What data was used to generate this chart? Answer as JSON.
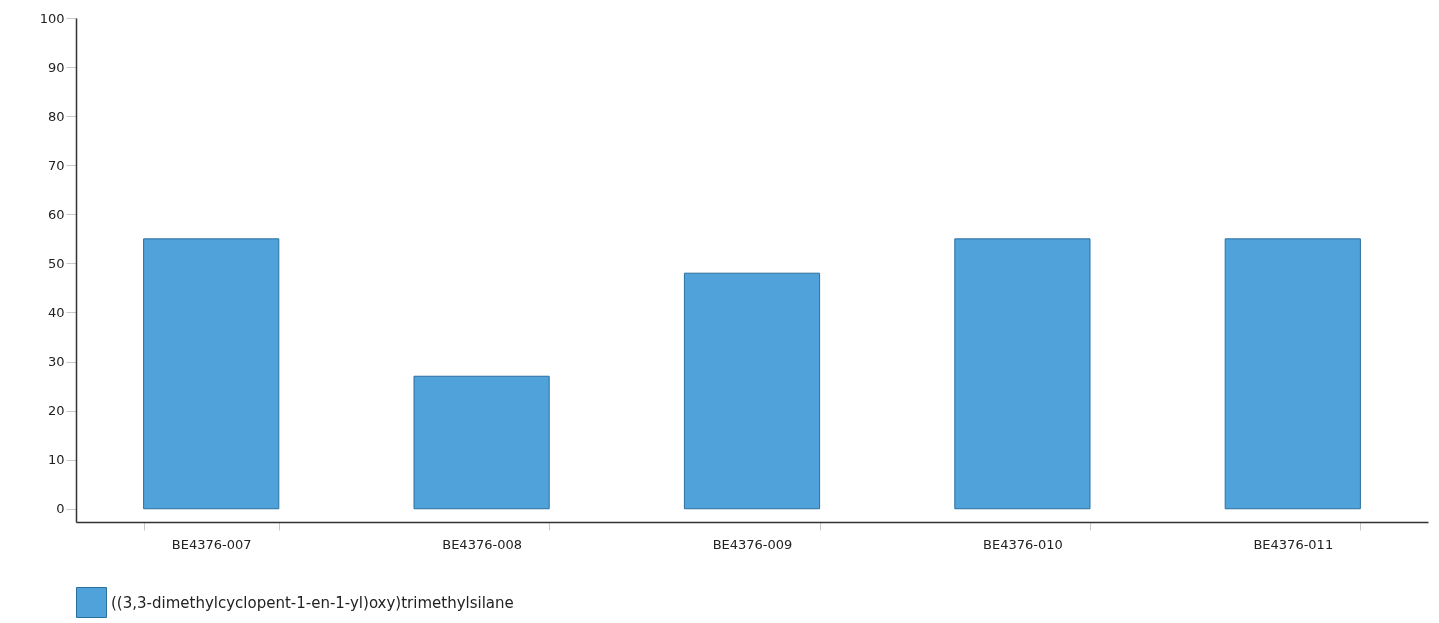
{
  "chart_data": {
    "type": "bar",
    "categories": [
      "BE4376-007",
      "BE4376-008",
      "BE4376-009",
      "BE4376-010",
      "BE4376-011"
    ],
    "series": [
      {
        "name": "((3,3-dimethylcyclopent-1-en-1-yl)oxy)trimethylsilane",
        "color": "#4fa3da",
        "values": [
          55,
          27,
          48,
          55,
          55
        ]
      }
    ],
    "ylim": [
      -2.7,
      100
    ],
    "yticks": [
      0,
      10,
      20,
      30,
      40,
      50,
      60,
      70,
      80,
      90,
      100
    ],
    "grid": false,
    "legend": "bottom"
  }
}
